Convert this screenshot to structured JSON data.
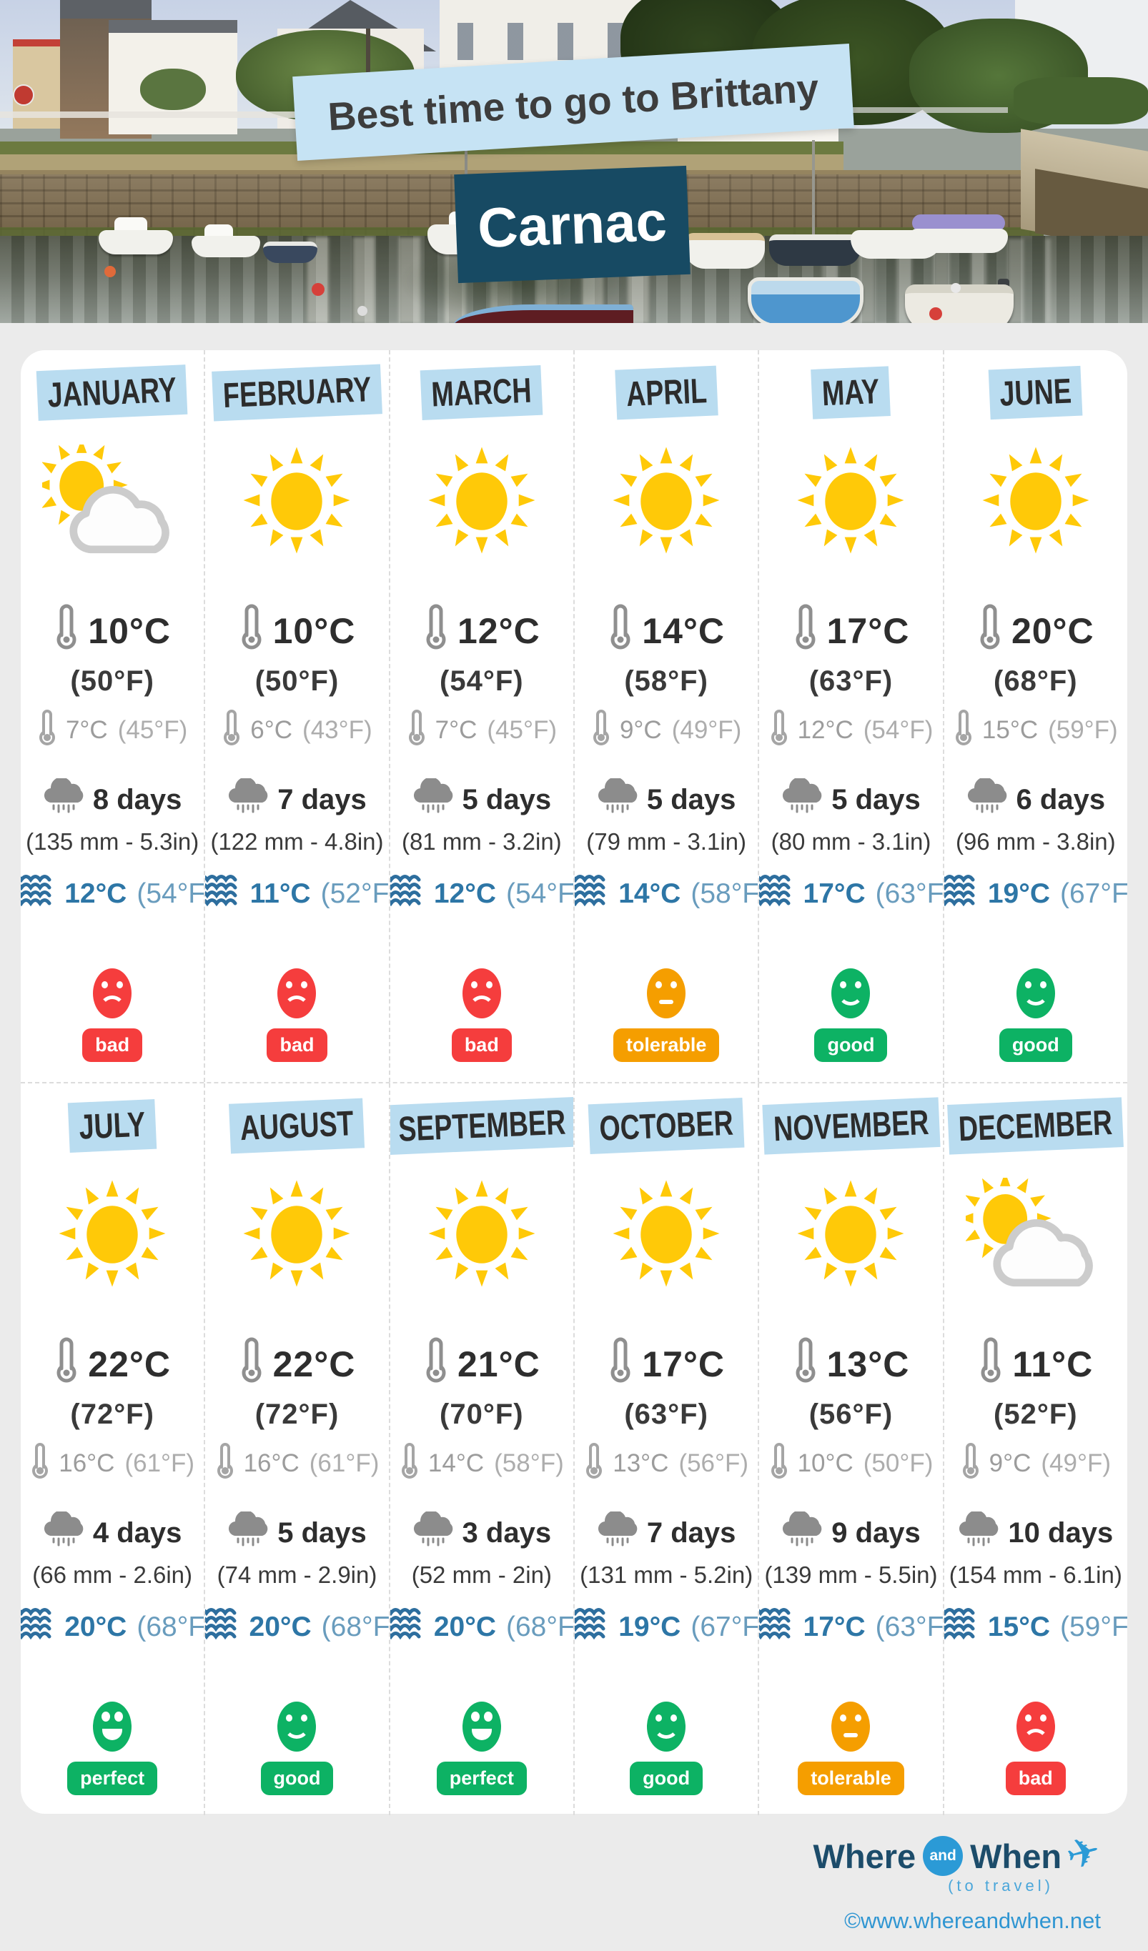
{
  "header": {
    "banner": "Best time to go to Brittany",
    "city": "Carnac"
  },
  "colors": {
    "banner_blue": "#c6e3f4",
    "navy": "#174a63",
    "month_highlight": "#b9dcf0",
    "sun_yellow": "#ffc908",
    "sea_blue": "#2d76a6",
    "bad": "#f53d3d",
    "tolerable": "#f59e00",
    "good": "#0db264",
    "perfect": "#0db264"
  },
  "months": [
    {
      "name": "JANUARY",
      "icon": "sun-cloud",
      "high_c": "10°C",
      "high_f": "(50°F)",
      "low_c": "7°C",
      "low_f": "(45°F)",
      "rain_days": "8 days",
      "rain_amount": "(135 mm - 5.3in)",
      "sea_c": "12°C",
      "sea_f": "(54°F)",
      "rating": "bad"
    },
    {
      "name": "FEBRUARY",
      "icon": "sun",
      "high_c": "10°C",
      "high_f": "(50°F)",
      "low_c": "6°C",
      "low_f": "(43°F)",
      "rain_days": "7 days",
      "rain_amount": "(122 mm - 4.8in)",
      "sea_c": "11°C",
      "sea_f": "(52°F)",
      "rating": "bad"
    },
    {
      "name": "MARCH",
      "icon": "sun",
      "high_c": "12°C",
      "high_f": "(54°F)",
      "low_c": "7°C",
      "low_f": "(45°F)",
      "rain_days": "5 days",
      "rain_amount": "(81 mm - 3.2in)",
      "sea_c": "12°C",
      "sea_f": "(54°F)",
      "rating": "bad"
    },
    {
      "name": "APRIL",
      "icon": "sun",
      "high_c": "14°C",
      "high_f": "(58°F)",
      "low_c": "9°C",
      "low_f": "(49°F)",
      "rain_days": "5 days",
      "rain_amount": "(79 mm - 3.1in)",
      "sea_c": "14°C",
      "sea_f": "(58°F)",
      "rating": "tolerable"
    },
    {
      "name": "MAY",
      "icon": "sun",
      "high_c": "17°C",
      "high_f": "(63°F)",
      "low_c": "12°C",
      "low_f": "(54°F)",
      "rain_days": "5 days",
      "rain_amount": "(80 mm - 3.1in)",
      "sea_c": "17°C",
      "sea_f": "(63°F)",
      "rating": "good"
    },
    {
      "name": "JUNE",
      "icon": "sun",
      "high_c": "20°C",
      "high_f": "(68°F)",
      "low_c": "15°C",
      "low_f": "(59°F)",
      "rain_days": "6 days",
      "rain_amount": "(96 mm - 3.8in)",
      "sea_c": "19°C",
      "sea_f": "(67°F)",
      "rating": "good"
    },
    {
      "name": "JULY",
      "icon": "sun",
      "high_c": "22°C",
      "high_f": "(72°F)",
      "low_c": "16°C",
      "low_f": "(61°F)",
      "rain_days": "4 days",
      "rain_amount": "(66 mm - 2.6in)",
      "sea_c": "20°C",
      "sea_f": "(68°F)",
      "rating": "perfect"
    },
    {
      "name": "AUGUST",
      "icon": "sun",
      "high_c": "22°C",
      "high_f": "(72°F)",
      "low_c": "16°C",
      "low_f": "(61°F)",
      "rain_days": "5 days",
      "rain_amount": "(74 mm - 2.9in)",
      "sea_c": "20°C",
      "sea_f": "(68°F)",
      "rating": "good"
    },
    {
      "name": "SEPTEMBER",
      "icon": "sun",
      "high_c": "21°C",
      "high_f": "(70°F)",
      "low_c": "14°C",
      "low_f": "(58°F)",
      "rain_days": "3 days",
      "rain_amount": "(52 mm - 2in)",
      "sea_c": "20°C",
      "sea_f": "(68°F)",
      "rating": "perfect"
    },
    {
      "name": "OCTOBER",
      "icon": "sun",
      "high_c": "17°C",
      "high_f": "(63°F)",
      "low_c": "13°C",
      "low_f": "(56°F)",
      "rain_days": "7 days",
      "rain_amount": "(131 mm - 5.2in)",
      "sea_c": "19°C",
      "sea_f": "(67°F)",
      "rating": "good"
    },
    {
      "name": "NOVEMBER",
      "icon": "sun",
      "high_c": "13°C",
      "high_f": "(56°F)",
      "low_c": "10°C",
      "low_f": "(50°F)",
      "rain_days": "9 days",
      "rain_amount": "(139 mm - 5.5in)",
      "sea_c": "17°C",
      "sea_f": "(63°F)",
      "rating": "tolerable"
    },
    {
      "name": "DECEMBER",
      "icon": "sun-cloud",
      "high_c": "11°C",
      "high_f": "(52°F)",
      "low_c": "9°C",
      "low_f": "(49°F)",
      "rain_days": "10 days",
      "rain_amount": "(154 mm - 6.1in)",
      "sea_c": "15°C",
      "sea_f": "(59°F)",
      "rating": "bad"
    }
  ],
  "footer": {
    "brand_where": "Where",
    "brand_and": "and",
    "brand_when": "When",
    "plane_icon": "✈",
    "tagline": "(to travel)",
    "copyright": "©www.whereandwhen.net"
  },
  "chart_data": {
    "type": "table",
    "title": "Best time to go to Brittany — Carnac",
    "categories": [
      "JANUARY",
      "FEBRUARY",
      "MARCH",
      "APRIL",
      "MAY",
      "JUNE",
      "JULY",
      "AUGUST",
      "SEPTEMBER",
      "OCTOBER",
      "NOVEMBER",
      "DECEMBER"
    ],
    "series": [
      {
        "name": "High temperature (°C)",
        "values": [
          10,
          10,
          12,
          14,
          17,
          20,
          22,
          22,
          21,
          17,
          13,
          11
        ]
      },
      {
        "name": "High temperature (°F)",
        "values": [
          50,
          50,
          54,
          58,
          63,
          68,
          72,
          72,
          70,
          63,
          56,
          52
        ]
      },
      {
        "name": "Low temperature (°C)",
        "values": [
          7,
          6,
          7,
          9,
          12,
          15,
          16,
          16,
          14,
          13,
          10,
          9
        ]
      },
      {
        "name": "Low temperature (°F)",
        "values": [
          45,
          43,
          45,
          49,
          54,
          59,
          61,
          61,
          58,
          56,
          50,
          49
        ]
      },
      {
        "name": "Rainy days",
        "values": [
          8,
          7,
          5,
          5,
          5,
          6,
          4,
          5,
          3,
          7,
          9,
          10
        ]
      },
      {
        "name": "Rainfall (mm)",
        "values": [
          135,
          122,
          81,
          79,
          80,
          96,
          66,
          74,
          52,
          131,
          139,
          154
        ]
      },
      {
        "name": "Rainfall (in)",
        "values": [
          5.3,
          4.8,
          3.2,
          3.1,
          3.1,
          3.8,
          2.6,
          2.9,
          2,
          5.2,
          5.5,
          6.1
        ]
      },
      {
        "name": "Sea temperature (°C)",
        "values": [
          12,
          11,
          12,
          14,
          17,
          19,
          20,
          20,
          20,
          19,
          17,
          15
        ]
      },
      {
        "name": "Sea temperature (°F)",
        "values": [
          54,
          52,
          54,
          58,
          63,
          67,
          68,
          68,
          68,
          67,
          63,
          59
        ]
      },
      {
        "name": "Weather icon",
        "values": [
          "sun-cloud",
          "sun",
          "sun",
          "sun",
          "sun",
          "sun",
          "sun",
          "sun",
          "sun",
          "sun",
          "sun",
          "sun-cloud"
        ]
      },
      {
        "name": "Rating",
        "values": [
          "bad",
          "bad",
          "bad",
          "tolerable",
          "good",
          "good",
          "perfect",
          "good",
          "perfect",
          "good",
          "tolerable",
          "bad"
        ]
      }
    ]
  }
}
